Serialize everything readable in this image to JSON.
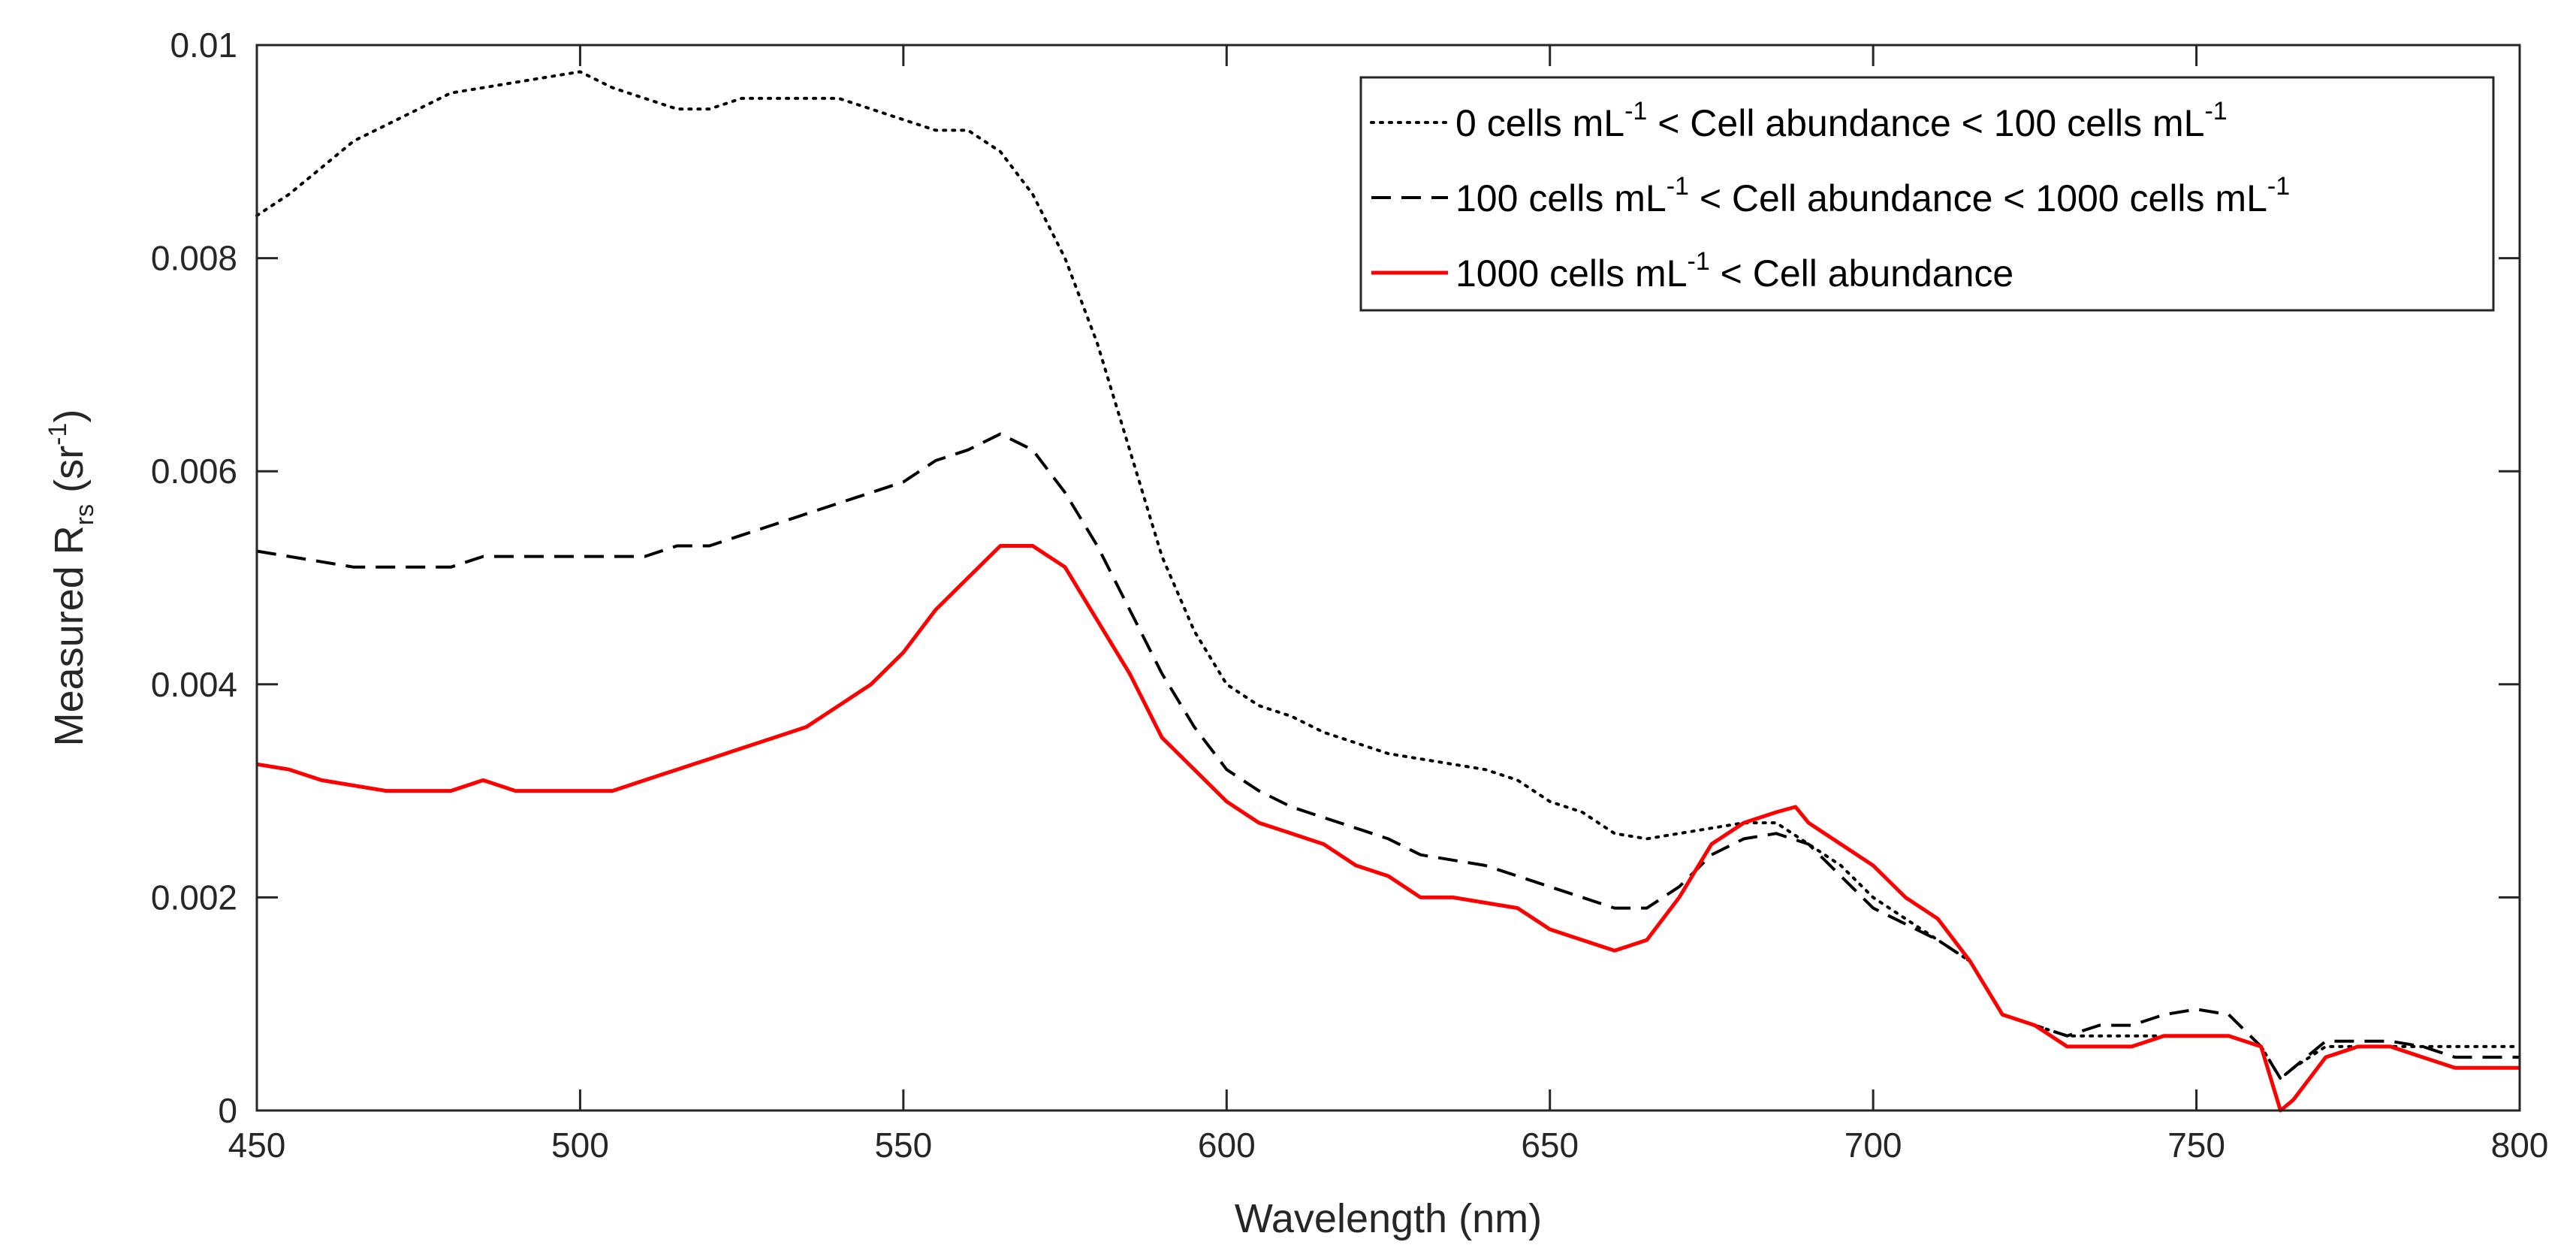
{
  "chart_data": {
    "type": "line",
    "xlabel": "Wavelength (nm)",
    "ylabel": {
      "base": "Measured R",
      "sub": "rs",
      "unit_open": " (sr",
      "unit_sup": "-1",
      "unit_close": ")"
    },
    "xlim": [
      450,
      800
    ],
    "ylim": [
      0,
      0.01
    ],
    "xticks": [
      450,
      500,
      550,
      600,
      650,
      700,
      750,
      800
    ],
    "xtick_labels": [
      "450",
      "500",
      "550",
      "600",
      "650",
      "700",
      "750",
      "800"
    ],
    "yticks": [
      0,
      0.002,
      0.004,
      0.006,
      0.008,
      0.01
    ],
    "ytick_labels": [
      "0",
      "0.002",
      "0.004",
      "0.006",
      "0.008",
      "0.01"
    ],
    "grid": false,
    "legend_position": "top-right",
    "series": [
      {
        "name": "0 cells mL-1 < Cell abundance < 100 cells mL-1",
        "legend": [
          {
            "t": "0 cells mL"
          },
          {
            "t": "-1",
            "sup": true
          },
          {
            "t": " < Cell abundance < 100 cells mL"
          },
          {
            "t": "-1",
            "sup": true
          }
        ],
        "color": "#000000",
        "style": "dotted",
        "x": [
          450,
          455,
          460,
          465,
          470,
          475,
          480,
          485,
          490,
          495,
          500,
          505,
          510,
          515,
          520,
          525,
          530,
          535,
          540,
          545,
          550,
          555,
          560,
          565,
          570,
          575,
          580,
          585,
          590,
          595,
          600,
          605,
          610,
          615,
          620,
          625,
          630,
          635,
          640,
          645,
          650,
          655,
          660,
          665,
          670,
          675,
          680,
          685,
          690,
          695,
          700,
          705,
          710,
          715,
          720,
          725,
          730,
          735,
          740,
          745,
          750,
          755,
          760,
          763,
          765,
          770,
          775,
          780,
          785,
          790,
          795,
          800
        ],
        "y": [
          0.0084,
          0.0086,
          0.00885,
          0.0091,
          0.00925,
          0.0094,
          0.00955,
          0.0096,
          0.00965,
          0.0097,
          0.00975,
          0.0096,
          0.0095,
          0.0094,
          0.0094,
          0.0095,
          0.0095,
          0.0095,
          0.0095,
          0.0094,
          0.0093,
          0.0092,
          0.0092,
          0.009,
          0.0086,
          0.008,
          0.0072,
          0.0062,
          0.0052,
          0.0045,
          0.004,
          0.0038,
          0.0037,
          0.00355,
          0.00345,
          0.00335,
          0.0033,
          0.00325,
          0.0032,
          0.0031,
          0.0029,
          0.0028,
          0.0026,
          0.00255,
          0.0026,
          0.00265,
          0.0027,
          0.0027,
          0.0025,
          0.0023,
          0.002,
          0.0018,
          0.0016,
          0.0014,
          0.0009,
          0.0008,
          0.0007,
          0.0007,
          0.0007,
          0.0007,
          0.0007,
          0.0007,
          0.0006,
          0.0003,
          0.0004,
          0.0006,
          0.0006,
          0.0006,
          0.0006,
          0.0006,
          0.0006,
          0.0006
        ]
      },
      {
        "name": "100 cells mL-1 < Cell abundance < 1000 cells mL-1",
        "legend": [
          {
            "t": "100 cells mL"
          },
          {
            "t": "-1",
            "sup": true
          },
          {
            "t": " < Cell abundance < 1000 cells mL"
          },
          {
            "t": "-1",
            "sup": true
          }
        ],
        "color": "#000000",
        "style": "dashed",
        "x": [
          450,
          455,
          460,
          465,
          470,
          475,
          480,
          485,
          490,
          495,
          500,
          505,
          510,
          515,
          520,
          525,
          530,
          535,
          540,
          545,
          550,
          555,
          560,
          565,
          570,
          575,
          580,
          585,
          590,
          595,
          600,
          605,
          610,
          615,
          620,
          625,
          630,
          635,
          640,
          645,
          650,
          655,
          660,
          665,
          670,
          675,
          680,
          685,
          690,
          695,
          700,
          705,
          710,
          715,
          720,
          725,
          730,
          735,
          740,
          745,
          750,
          755,
          760,
          763,
          765,
          770,
          775,
          780,
          785,
          790,
          795,
          800
        ],
        "y": [
          0.00525,
          0.0052,
          0.00515,
          0.0051,
          0.0051,
          0.0051,
          0.0051,
          0.0052,
          0.0052,
          0.0052,
          0.0052,
          0.0052,
          0.0052,
          0.0053,
          0.0053,
          0.0054,
          0.0055,
          0.0056,
          0.0057,
          0.0058,
          0.0059,
          0.0061,
          0.0062,
          0.00635,
          0.0062,
          0.0058,
          0.0053,
          0.0047,
          0.0041,
          0.0036,
          0.0032,
          0.003,
          0.00285,
          0.00275,
          0.00265,
          0.00255,
          0.0024,
          0.00235,
          0.0023,
          0.0022,
          0.0021,
          0.002,
          0.0019,
          0.0019,
          0.0021,
          0.0024,
          0.00255,
          0.0026,
          0.0025,
          0.0022,
          0.0019,
          0.00175,
          0.0016,
          0.0014,
          0.0009,
          0.0008,
          0.0007,
          0.0008,
          0.0008,
          0.0009,
          0.00095,
          0.0009,
          0.0006,
          0.0003,
          0.0004,
          0.00065,
          0.00065,
          0.00065,
          0.0006,
          0.0005,
          0.0005,
          0.0005
        ]
      },
      {
        "name": "1000 cells mL-1 < Cell abundance",
        "legend": [
          {
            "t": "1000 cells mL"
          },
          {
            "t": "-1",
            "sup": true
          },
          {
            "t": " < Cell abundance"
          }
        ],
        "color": "#ff0000",
        "style": "solid",
        "x": [
          450,
          455,
          460,
          465,
          470,
          475,
          480,
          485,
          490,
          495,
          500,
          505,
          510,
          515,
          520,
          525,
          530,
          535,
          540,
          545,
          550,
          555,
          560,
          565,
          570,
          575,
          580,
          585,
          590,
          595,
          600,
          605,
          610,
          615,
          620,
          625,
          630,
          635,
          640,
          645,
          650,
          655,
          660,
          665,
          670,
          675,
          680,
          685,
          688,
          690,
          695,
          700,
          705,
          710,
          715,
          720,
          725,
          730,
          735,
          740,
          745,
          750,
          755,
          760,
          763,
          765,
          770,
          775,
          780,
          785,
          790,
          795,
          800
        ],
        "y": [
          0.00325,
          0.0032,
          0.0031,
          0.00305,
          0.003,
          0.003,
          0.003,
          0.0031,
          0.003,
          0.003,
          0.003,
          0.003,
          0.0031,
          0.0032,
          0.0033,
          0.0034,
          0.0035,
          0.0036,
          0.0038,
          0.004,
          0.0043,
          0.0047,
          0.005,
          0.0053,
          0.0053,
          0.0051,
          0.0046,
          0.0041,
          0.0035,
          0.0032,
          0.0029,
          0.0027,
          0.0026,
          0.0025,
          0.0023,
          0.0022,
          0.002,
          0.002,
          0.00195,
          0.0019,
          0.0017,
          0.0016,
          0.0015,
          0.0016,
          0.002,
          0.0025,
          0.0027,
          0.0028,
          0.00285,
          0.0027,
          0.0025,
          0.0023,
          0.002,
          0.0018,
          0.0014,
          0.0009,
          0.0008,
          0.0006,
          0.0006,
          0.0006,
          0.0007,
          0.0007,
          0.0007,
          0.0006,
          0.0,
          0.0001,
          0.0005,
          0.0006,
          0.0006,
          0.0005,
          0.0004,
          0.0004,
          0.0004
        ]
      }
    ]
  }
}
